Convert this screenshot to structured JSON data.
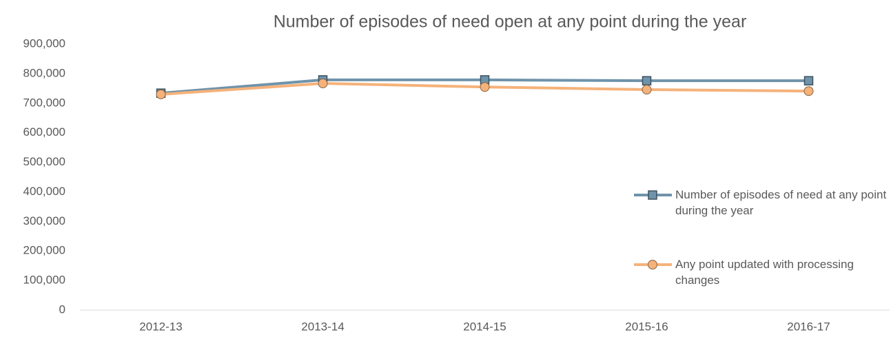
{
  "chart_data": {
    "type": "line",
    "title": "Number of episodes of need open at any point during the year",
    "categories": [
      "2012-13",
      "2013-14",
      "2014-15",
      "2015-16",
      "2016-17"
    ],
    "series": [
      {
        "name": "Number of episodes of need at any point during the year",
        "color": "#6f93ab",
        "marker": "square",
        "values": [
          734000,
          779000,
          779000,
          776000,
          776000
        ]
      },
      {
        "name": "Any point updated with processing changes",
        "color": "#f5b27a",
        "marker": "circle",
        "values": [
          730000,
          767000,
          755000,
          746000,
          741000
        ]
      }
    ],
    "ylim": [
      0,
      900000
    ],
    "yticks": [
      {
        "value": 0,
        "label": "0"
      },
      {
        "value": 100000,
        "label": "100,000"
      },
      {
        "value": 200000,
        "label": "200,000"
      },
      {
        "value": 300000,
        "label": "300,000"
      },
      {
        "value": 400000,
        "label": "400,000"
      },
      {
        "value": 500000,
        "label": "500,000"
      },
      {
        "value": 600000,
        "label": "600,000"
      },
      {
        "value": 700000,
        "label": "700,000"
      },
      {
        "value": 800000,
        "label": "800,000"
      },
      {
        "value": 900000,
        "label": "900,000"
      }
    ],
    "grid": false,
    "legend": "right"
  }
}
